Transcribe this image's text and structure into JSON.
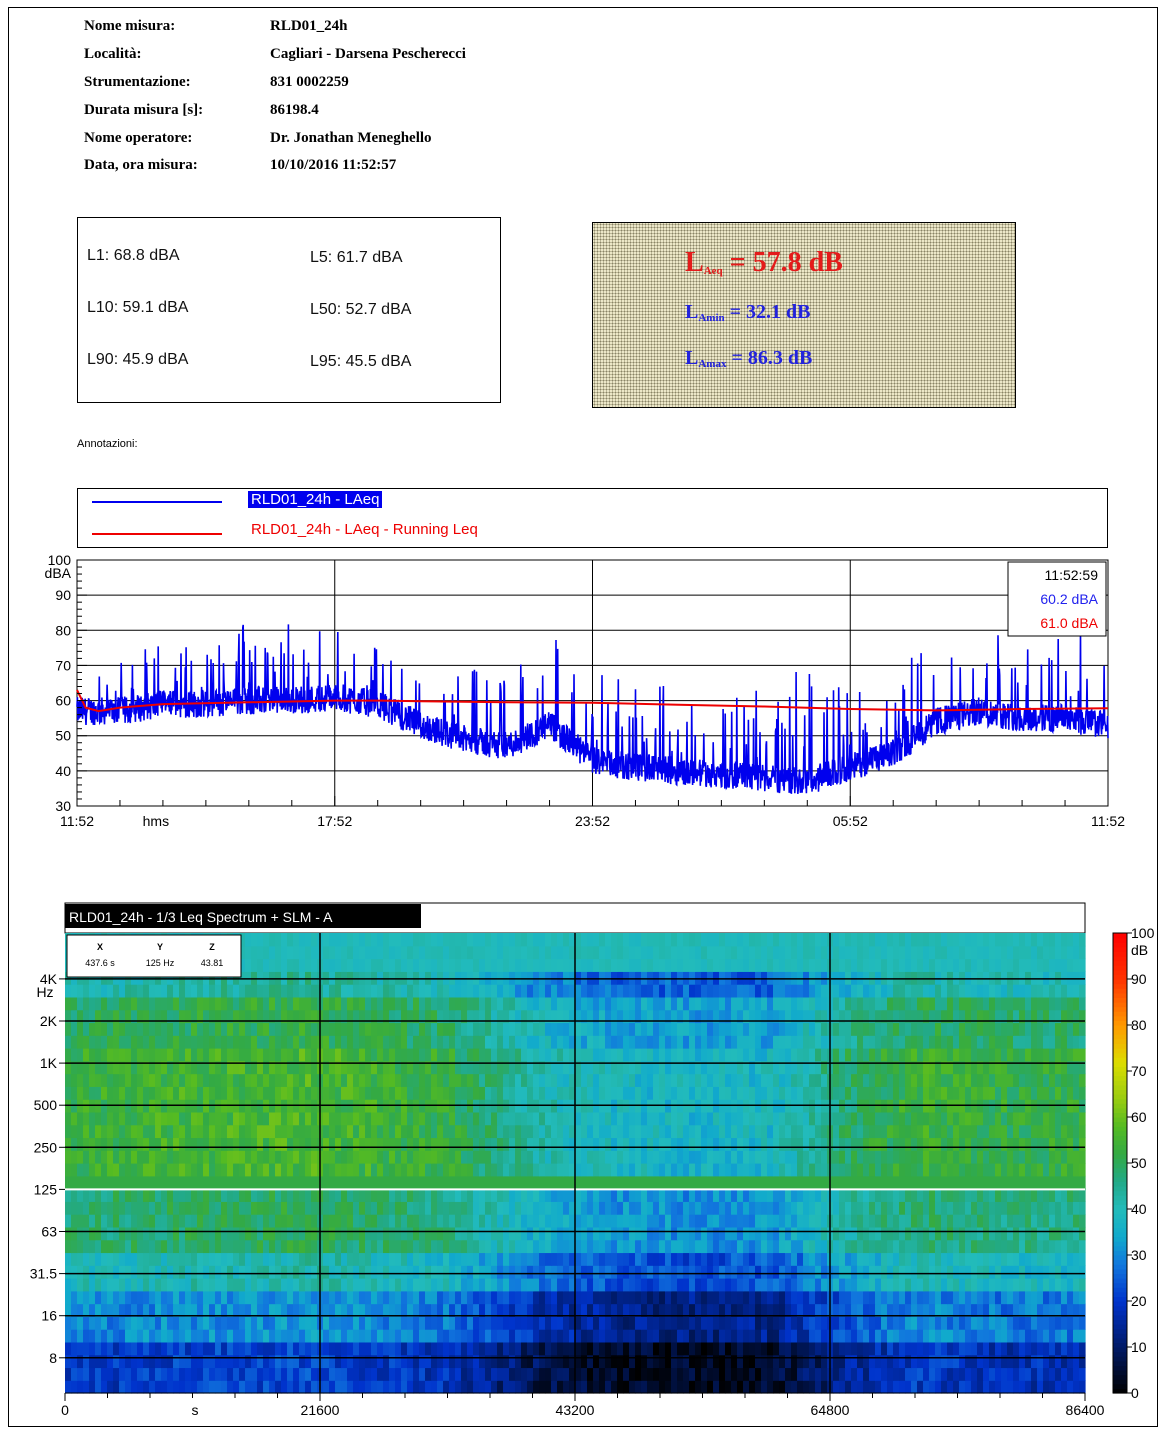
{
  "header": {
    "rows": [
      {
        "key": "Nome misura:",
        "value": "RLD01_24h"
      },
      {
        "key": "Località:",
        "value": "Cagliari - Darsena Pescherecci"
      },
      {
        "key": "Strumentazione:",
        "value": "831 0002259"
      },
      {
        "key": "Durata misura [s]:",
        "value": "86198.4"
      },
      {
        "key": "Nome operatore:",
        "value": "Dr. Jonathan Meneghello"
      },
      {
        "key": "Data, ora misura:",
        "value": "10/10/2016  11:52:57"
      }
    ]
  },
  "percentiles": {
    "L1": "L1: 68.8 dBA",
    "L5": "L5: 61.7 dBA",
    "L10": "L10: 59.1 dBA",
    "L50": "L50: 52.7 dBA",
    "L90": "L90: 45.9 dBA",
    "L95": "L95: 45.5 dBA"
  },
  "levels": {
    "laeq_sym": "L",
    "laeq_sub": "Aeq",
    "laeq_val": " = 57.8 dB",
    "lamin_sym": "L",
    "lamin_sub": "Amin",
    "lamin_val": " = 32.1 dB",
    "lamax_sym": "L",
    "lamax_sub": "Amax",
    "lamax_val": " = 86.3 dB"
  },
  "annotations_label": "Annotazioni:",
  "legend": {
    "series1": "RLD01_24h - LAeq",
    "series2": "RLD01_24h - LAeq - Running Leq"
  },
  "cursor_box": {
    "time": "11:52:59",
    "laeq": "60.2 dBA",
    "running": "61.0 dBA"
  },
  "spectrum_title": "RLD01_24h - 1/3 Leq Spectrum + SLM - A",
  "xyz": {
    "x_label": "X",
    "y_label": "Y",
    "z_label": "Z",
    "x_val": "437.6 s",
    "y_val": "125 Hz",
    "z_val": "43.81"
  },
  "colors": {
    "laeq": "#0000ee",
    "running": "#ee0000"
  },
  "chart_data": [
    {
      "type": "line",
      "ylabel": "dBA",
      "xlabel": "hms",
      "ylim": [
        30,
        100
      ],
      "yticks": [
        30,
        40,
        50,
        60,
        70,
        80,
        90,
        100
      ],
      "xticks": [
        "11:52",
        "17:52",
        "23:52",
        "05:52",
        "11:52"
      ],
      "grid": true,
      "series": [
        {
          "name": "RLD01_24h - LAeq",
          "color": "#0000ee",
          "x_hours": [
            0,
            1,
            2,
            3,
            4,
            5,
            6,
            7,
            8,
            9,
            10,
            11,
            12,
            13,
            14,
            15,
            16,
            17,
            18,
            19,
            20,
            21,
            22,
            23,
            24
          ],
          "y_base": [
            56,
            56,
            58,
            58,
            59,
            59,
            60,
            58,
            52,
            48,
            46,
            52,
            42,
            40,
            39,
            38,
            37,
            36,
            40,
            44,
            53,
            56,
            54,
            54,
            52
          ],
          "y_peak": [
            72,
            70,
            74,
            76,
            78,
            76,
            82,
            74,
            66,
            64,
            68,
            78,
            62,
            60,
            60,
            60,
            58,
            64,
            60,
            64,
            70,
            76,
            78,
            78,
            76
          ]
        },
        {
          "name": "RLD01_24h - LAeq - Running Leq",
          "color": "#ee0000",
          "x_hours": [
            0,
            0.2,
            0.5,
            1,
            2,
            4,
            6,
            7,
            8,
            10,
            12,
            14,
            16,
            18,
            20,
            21,
            22,
            24
          ],
          "y": [
            63,
            58,
            57,
            58,
            59,
            59.5,
            60,
            60,
            59.8,
            59.5,
            59.4,
            58.8,
            58.3,
            57.6,
            57.2,
            57.4,
            57.6,
            57.8
          ]
        }
      ]
    },
    {
      "type": "heatmap",
      "title": "RLD01_24h - 1/3 Leq Spectrum + SLM - A",
      "xlabel": "s",
      "xlim": [
        0,
        86400
      ],
      "xticks": [
        0,
        21600,
        43200,
        64800,
        86400
      ],
      "ylabel": "Hz",
      "yticks": [
        "8",
        "16",
        "31.5",
        "63",
        "125",
        "250",
        "500",
        "1K",
        "2K",
        "4K"
      ],
      "zlabel": "dB",
      "zlim": [
        0,
        100
      ],
      "zticks": [
        0,
        10,
        20,
        30,
        40,
        50,
        60,
        70,
        80,
        90,
        100
      ],
      "time_profile_x": [
        0,
        10800,
        21600,
        32400,
        40000,
        46000,
        54000,
        60000,
        66000,
        72000,
        80000,
        86400
      ],
      "time_profile_db": [
        47,
        49,
        50,
        46,
        36,
        32,
        31,
        32,
        42,
        48,
        46,
        46
      ]
    }
  ]
}
